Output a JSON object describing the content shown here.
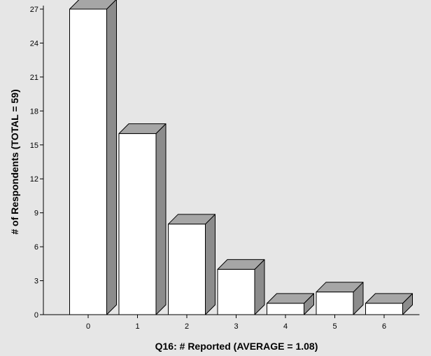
{
  "chart_data": {
    "type": "bar",
    "style": "3d",
    "categories": [
      "0",
      "1",
      "2",
      "3",
      "4",
      "5",
      "6"
    ],
    "values": [
      27,
      16,
      8,
      4,
      1,
      2,
      1
    ],
    "xlabel": "Q16: # Reported (AVERAGE = 1.08)",
    "ylabel": "# of Respondents (TOTAL = 59)",
    "ylim": [
      0,
      27
    ],
    "yticks": [
      "0",
      "3",
      "6",
      "9",
      "12",
      "15",
      "18",
      "21",
      "24",
      "27"
    ],
    "grid": false,
    "colors": {
      "background": "#e6e6e6",
      "bar_front": "#ffffff",
      "bar_side": "#8c8c8c",
      "bar_top": "#a6a6a6",
      "stroke": "#000000"
    }
  }
}
